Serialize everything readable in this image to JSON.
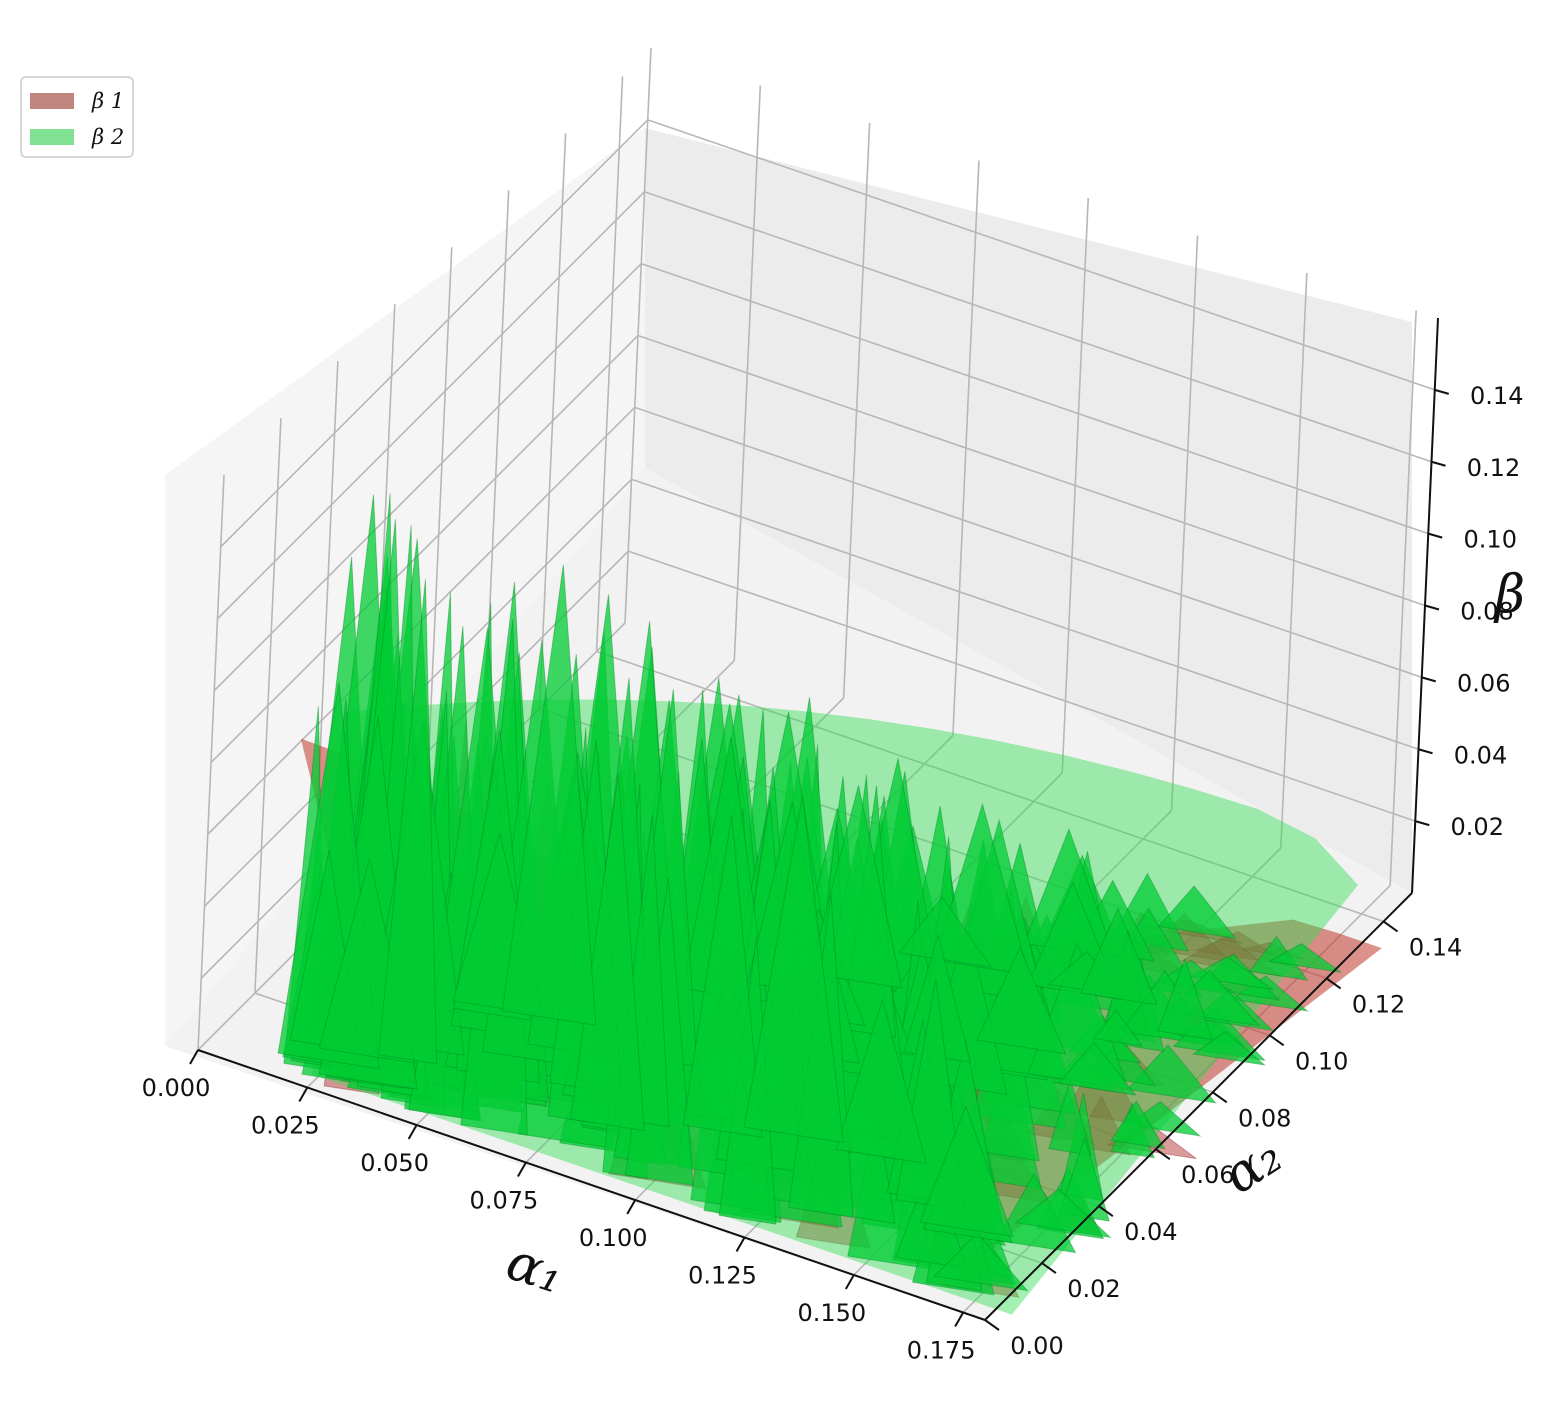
{
  "chart_data": {
    "type": "surface3d",
    "title": "",
    "xlabel": "α₁",
    "ylabel": "α₂",
    "zlabel": "β",
    "xlim": [
      0,
      0.18
    ],
    "ylim": [
      0,
      0.15
    ],
    "zlim": [
      0,
      0.16
    ],
    "x_ticks": [
      "0.000",
      "0.025",
      "0.050",
      "0.075",
      "0.100",
      "0.125",
      "0.150",
      "0.175"
    ],
    "y_ticks": [
      "0.00",
      "0.02",
      "0.04",
      "0.06",
      "0.08",
      "0.10",
      "0.12",
      "0.14"
    ],
    "z_ticks": [
      "0.02",
      "0.04",
      "0.06",
      "0.08",
      "0.10",
      "0.12",
      "0.14"
    ],
    "legend_position": "top-left",
    "grid": true,
    "series": [
      {
        "name": "β 1",
        "color": "#c0857e",
        "surface_color": "#c0392b",
        "description": "smooth-ish surface, max β ≈ 0.10 near α₁≈0.04"
      },
      {
        "name": "β 2",
        "color": "#7fe191",
        "surface_color": "#00cc33",
        "description": "noisy spiky surface, peaks up to β ≈ 0.15"
      }
    ],
    "surface_extent": {
      "alpha1_range": [
        0.02,
        0.185
      ],
      "alpha2_range": [
        0.0,
        0.13
      ],
      "beta_peak": 0.15
    }
  },
  "legend": {
    "items": [
      {
        "label": "β 1",
        "color": "#c0857e"
      },
      {
        "label": "β 2",
        "color": "#7fe191"
      }
    ]
  }
}
